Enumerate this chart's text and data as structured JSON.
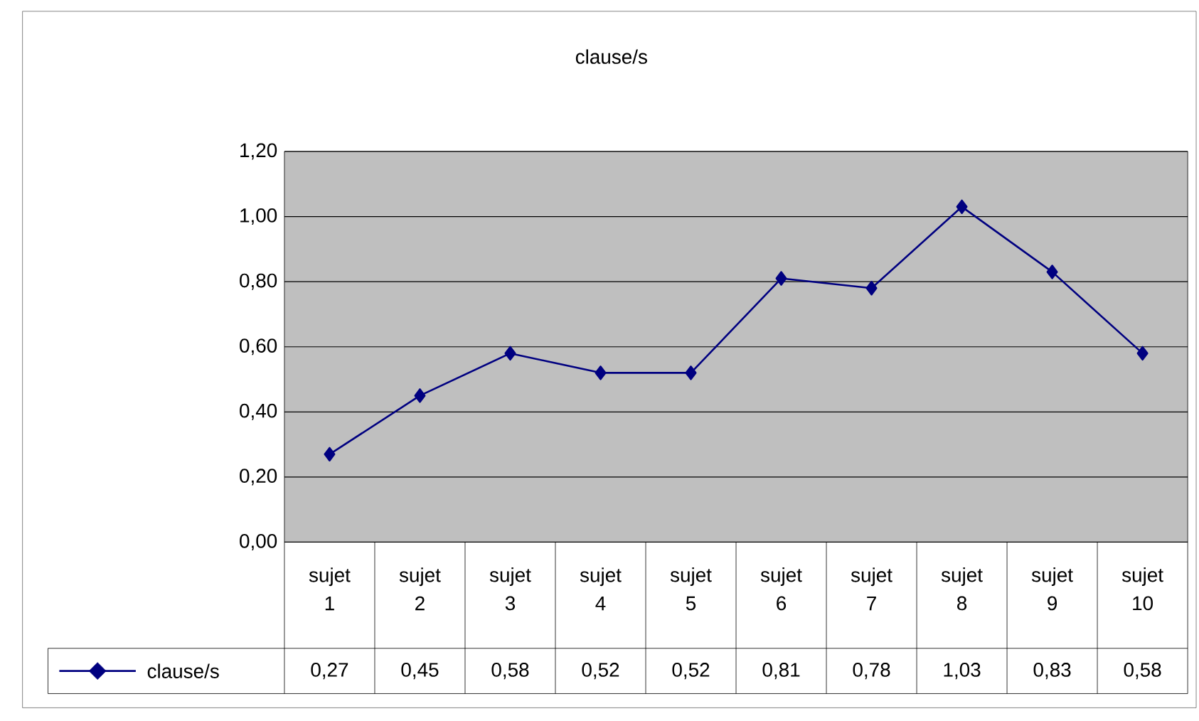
{
  "chart_data": {
    "type": "line",
    "title": "clause/s",
    "categories": [
      "sujet 1",
      "sujet 2",
      "sujet 3",
      "sujet 4",
      "sujet 5",
      "sujet 6",
      "sujet 7",
      "sujet 8",
      "sujet 9",
      "sujet 10"
    ],
    "series": [
      {
        "name": "clause/s",
        "color": "#000080",
        "values": [
          0.27,
          0.45,
          0.58,
          0.52,
          0.52,
          0.81,
          0.78,
          1.03,
          0.83,
          0.58
        ],
        "value_labels": [
          "0,27",
          "0,45",
          "0,58",
          "0,52",
          "0,52",
          "0,81",
          "0,78",
          "1,03",
          "0,83",
          "0,58"
        ]
      }
    ],
    "ylim": [
      0,
      1.2
    ],
    "yticks": [
      {
        "value": 0,
        "label": "0,00"
      },
      {
        "value": 0.2,
        "label": "0,20"
      },
      {
        "value": 0.4,
        "label": "0,40"
      },
      {
        "value": 0.6,
        "label": "0,60"
      },
      {
        "value": 0.8,
        "label": "0,80"
      },
      {
        "value": 1.0,
        "label": "1,00"
      },
      {
        "value": 1.2,
        "label": "1,20"
      }
    ],
    "grid": "y",
    "legend": "bottom left",
    "marker": "diamond",
    "line_style": "solid"
  }
}
